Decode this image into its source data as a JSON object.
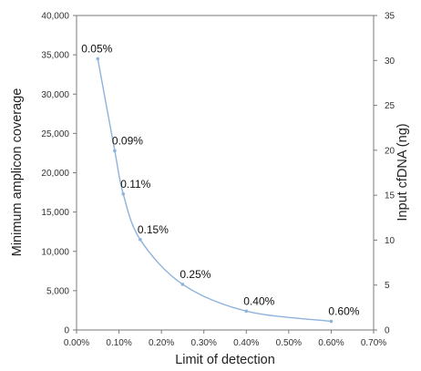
{
  "chart_data": {
    "type": "line",
    "title": "",
    "xlabel": "Limit of detection",
    "ylabel": "Minimum amplicon coverage",
    "y2label": "Input cfDNA (ng)",
    "xlim": [
      0,
      0.7
    ],
    "ylim": [
      0,
      40000
    ],
    "y2lim": [
      0,
      35
    ],
    "x_ticks": [
      "0.00%",
      "0.10%",
      "0.20%",
      "0.30%",
      "0.40%",
      "0.50%",
      "0.60%",
      "0.70%"
    ],
    "y_ticks": [
      "0",
      "5,000",
      "10,000",
      "15,000",
      "20,000",
      "25,000",
      "30,000",
      "35,000",
      "40,000"
    ],
    "y2_ticks": [
      "0",
      "5",
      "10",
      "15",
      "20",
      "25",
      "30",
      "35"
    ],
    "grid": false,
    "line_color": "#8fb2dc",
    "series": [
      {
        "x": [
          0.05,
          0.09,
          0.11,
          0.15,
          0.25,
          0.4,
          0.6
        ],
        "y": [
          34500,
          22800,
          17300,
          11500,
          5800,
          2400,
          1100
        ],
        "labels": [
          "0.05%",
          "0.09%",
          "0.11%",
          "0.15%",
          "0.25%",
          "0.40%",
          "0.60%"
        ]
      }
    ]
  }
}
